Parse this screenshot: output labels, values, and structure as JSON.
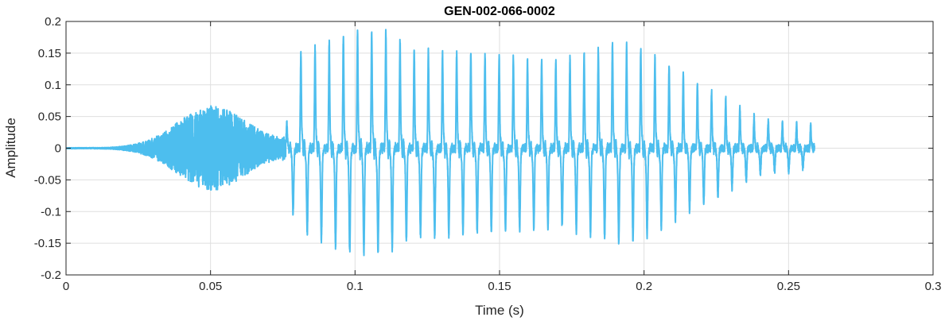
{
  "chart_data": {
    "type": "line",
    "title": "GEN-002-066-0002",
    "xlabel": "Time (s)",
    "ylabel": "Amplitude",
    "xlim": [
      0,
      0.3
    ],
    "ylim": [
      -0.2,
      0.2
    ],
    "xticks": [
      0,
      0.05,
      0.1,
      0.15,
      0.2,
      0.25,
      0.3
    ],
    "xtick_labels": [
      "0",
      "0.05",
      "0.1",
      "0.15",
      "0.2",
      "0.25",
      "0.3"
    ],
    "yticks": [
      -0.2,
      -0.15,
      -0.1,
      -0.05,
      0,
      0.05,
      0.1,
      0.15,
      0.2
    ],
    "ytick_labels": [
      "-0.2",
      "-0.15",
      "-0.1",
      "-0.05",
      "0",
      "0.05",
      "0.1",
      "0.15",
      "0.2"
    ],
    "grid": true,
    "series": [
      {
        "color": "#4DBEEE",
        "waveform": {
          "duration": 0.259,
          "noise_segment": {
            "start": 0.0,
            "end": 0.076,
            "peak_time": 0.05,
            "peak_amp": 0.075
          },
          "voiced_segment": {
            "start": 0.076,
            "end": 0.259,
            "period": 0.0049,
            "envelope": [
              [
                0.076,
                0.06
              ],
              [
                0.08,
                0.15
              ],
              [
                0.09,
                0.17
              ],
              [
                0.1,
                0.19
              ],
              [
                0.11,
                0.19
              ],
              [
                0.12,
                0.16
              ],
              [
                0.15,
                0.15
              ],
              [
                0.17,
                0.14
              ],
              [
                0.19,
                0.17
              ],
              [
                0.2,
                0.16
              ],
              [
                0.21,
                0.13
              ],
              [
                0.22,
                0.1
              ],
              [
                0.23,
                0.075
              ],
              [
                0.24,
                0.045
              ],
              [
                0.259,
                0.035
              ]
            ]
          },
          "extremes": {
            "max": 0.2,
            "min": -0.175
          }
        }
      }
    ]
  }
}
